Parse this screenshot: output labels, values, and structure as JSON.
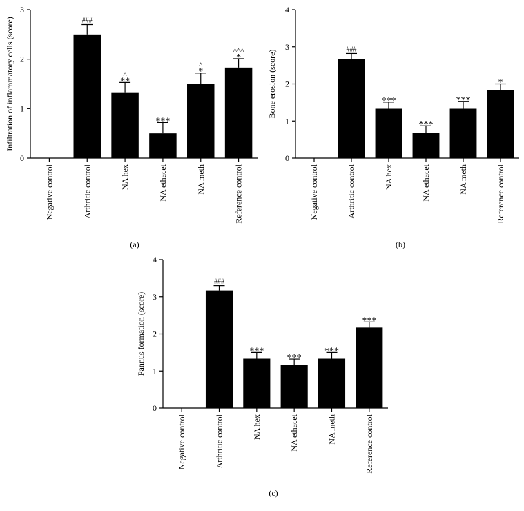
{
  "chart_data": [
    {
      "type": "bar",
      "panel_label": "(a)",
      "ylabel": "Infiltration of inflammatory cells (score)",
      "ylim": [
        0,
        3
      ],
      "yticks": [
        0,
        1,
        2,
        3
      ],
      "categories": [
        "Negative control",
        "Arthritic control",
        "NA hex",
        "NA ethacet",
        "NA meth",
        "Reference control"
      ],
      "values": [
        0,
        2.5,
        1.33,
        0.5,
        1.5,
        1.83
      ],
      "errors": [
        0,
        0.2,
        0.2,
        0.22,
        0.22,
        0.18
      ],
      "annotations": [
        "",
        "###",
        "**",
        "***",
        "*",
        "*"
      ],
      "annotations2": [
        "",
        "",
        "^",
        "",
        "^",
        "^^^"
      ]
    },
    {
      "type": "bar",
      "panel_label": "(b)",
      "ylabel": "Bone erosion (score)",
      "ylim": [
        0,
        4
      ],
      "yticks": [
        0,
        1,
        2,
        3,
        4
      ],
      "categories": [
        "Negative control",
        "Arthritic control",
        "NA hex",
        "NA ethacet",
        "NA meth",
        "Reference control"
      ],
      "values": [
        0,
        2.67,
        1.33,
        0.67,
        1.33,
        1.83
      ],
      "errors": [
        0,
        0.15,
        0.18,
        0.2,
        0.2,
        0.17
      ],
      "annotations": [
        "",
        "###",
        "***",
        "***",
        "***",
        "*"
      ],
      "annotations2": [
        "",
        "",
        "",
        "",
        "",
        ""
      ]
    },
    {
      "type": "bar",
      "panel_label": "(c)",
      "ylabel": "Pannus formation (score)",
      "ylim": [
        0,
        4
      ],
      "yticks": [
        0,
        1,
        2,
        3,
        4
      ],
      "categories": [
        "Negative control",
        "Arthritic control",
        "NA hex",
        "NA ethacet",
        "NA meth",
        "Reference control"
      ],
      "values": [
        0,
        3.17,
        1.33,
        1.17,
        1.33,
        2.17
      ],
      "errors": [
        0,
        0.13,
        0.17,
        0.15,
        0.17,
        0.15
      ],
      "annotations": [
        "",
        "###",
        "***",
        "***",
        "***",
        "***"
      ],
      "annotations2": [
        "",
        "",
        "",
        "",
        "",
        ""
      ]
    }
  ]
}
